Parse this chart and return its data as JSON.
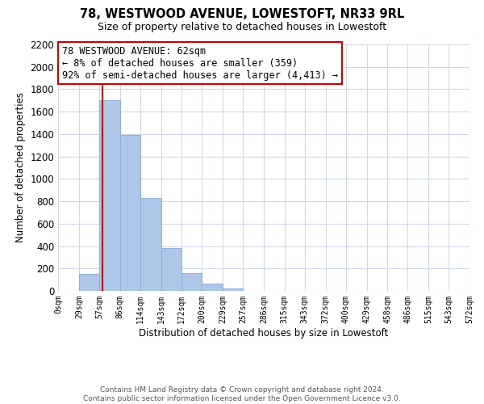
{
  "title": "78, WESTWOOD AVENUE, LOWESTOFT, NR33 9RL",
  "subtitle": "Size of property relative to detached houses in Lowestoft",
  "xlabel": "Distribution of detached houses by size in Lowestoft",
  "ylabel": "Number of detached properties",
  "bar_edges": [
    0,
    29,
    57,
    86,
    114,
    143,
    172,
    200,
    229,
    257,
    286,
    315,
    343,
    372,
    400,
    429,
    458,
    486,
    515,
    543,
    572
  ],
  "bar_heights": [
    0,
    155,
    1700,
    1390,
    830,
    385,
    160,
    65,
    25,
    0,
    0,
    0,
    0,
    0,
    0,
    0,
    0,
    0,
    0,
    0
  ],
  "bar_color": "#aec6e8",
  "bar_edge_color": "#8db0d8",
  "property_line_x": 62,
  "property_line_color": "#cc0000",
  "ylim": [
    0,
    2200
  ],
  "yticks": [
    0,
    200,
    400,
    600,
    800,
    1000,
    1200,
    1400,
    1600,
    1800,
    2000,
    2200
  ],
  "xtick_labels": [
    "0sqm",
    "29sqm",
    "57sqm",
    "86sqm",
    "114sqm",
    "143sqm",
    "172sqm",
    "200sqm",
    "229sqm",
    "257sqm",
    "286sqm",
    "315sqm",
    "343sqm",
    "372sqm",
    "400sqm",
    "429sqm",
    "458sqm",
    "486sqm",
    "515sqm",
    "543sqm",
    "572sqm"
  ],
  "annotation_text": "78 WESTWOOD AVENUE: 62sqm\n← 8% of detached houses are smaller (359)\n92% of semi-detached houses are larger (4,413) →",
  "annotation_box_color": "#ffffff",
  "annotation_box_edge": "#cc0000",
  "footer_text": "Contains HM Land Registry data © Crown copyright and database right 2024.\nContains public sector information licensed under the Open Government Licence v3.0.",
  "background_color": "#ffffff",
  "grid_color": "#d0d8e8"
}
